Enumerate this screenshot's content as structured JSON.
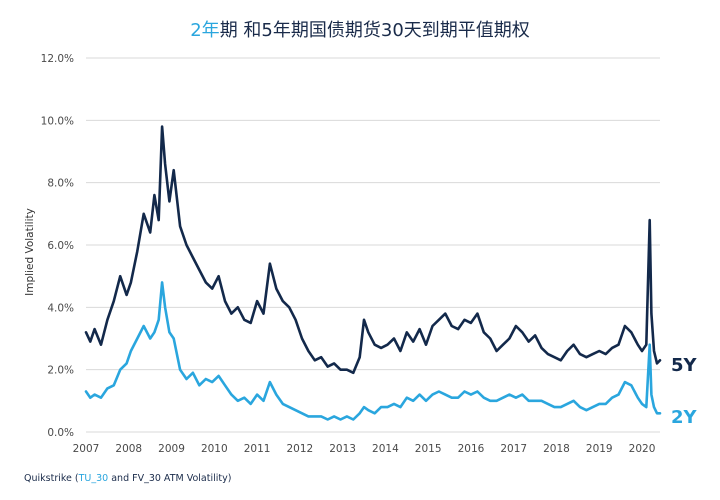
{
  "title": {
    "highlight": "2年",
    "rest": "期 和5年期国债期货30天到期平值期权"
  },
  "source": {
    "prefix": "Quikstrike (",
    "highlight": "TU_30",
    "suffix": " and FV_30 ATM Volatility)"
  },
  "colors": {
    "series_2y": "#2aa6de",
    "series_5y": "#13294b",
    "grid": "#d9d9d9",
    "text": "#4a4a4a"
  },
  "chart_data": {
    "type": "line",
    "ylabel": "Implied Volatility",
    "ylim": [
      0,
      12
    ],
    "xlim": [
      2007,
      2020.42
    ],
    "y_ticks": [
      0,
      2,
      4,
      6,
      8,
      10,
      12
    ],
    "y_tick_labels": [
      "0.0%",
      "2.0%",
      "4.0%",
      "6.0%",
      "8.0%",
      "10.0%",
      "12.0%"
    ],
    "x_ticks": [
      2007,
      2008,
      2009,
      2010,
      2011,
      2012,
      2013,
      2014,
      2015,
      2016,
      2017,
      2018,
      2019,
      2020
    ],
    "x_tick_labels": [
      "2007",
      "2008",
      "2009",
      "2010",
      "2011",
      "2012",
      "2013",
      "2014",
      "2015",
      "2016",
      "2017",
      "2018",
      "2019",
      "2020"
    ],
    "grid": true,
    "series": [
      {
        "name": "5Y",
        "x": [
          2007.0,
          2007.1,
          2007.2,
          2007.35,
          2007.5,
          2007.65,
          2007.8,
          2007.95,
          2008.05,
          2008.2,
          2008.35,
          2008.5,
          2008.6,
          2008.7,
          2008.78,
          2008.85,
          2008.95,
          2009.05,
          2009.2,
          2009.35,
          2009.5,
          2009.65,
          2009.8,
          2009.95,
          2010.1,
          2010.25,
          2010.4,
          2010.55,
          2010.7,
          2010.85,
          2011.0,
          2011.15,
          2011.3,
          2011.45,
          2011.6,
          2011.75,
          2011.9,
          2012.05,
          2012.2,
          2012.35,
          2012.5,
          2012.65,
          2012.8,
          2012.95,
          2013.1,
          2013.25,
          2013.4,
          2013.5,
          2013.6,
          2013.75,
          2013.9,
          2014.05,
          2014.2,
          2014.35,
          2014.5,
          2014.65,
          2014.8,
          2014.95,
          2015.1,
          2015.25,
          2015.4,
          2015.55,
          2015.7,
          2015.85,
          2016.0,
          2016.15,
          2016.3,
          2016.45,
          2016.6,
          2016.75,
          2016.9,
          2017.05,
          2017.2,
          2017.35,
          2017.5,
          2017.65,
          2017.8,
          2017.95,
          2018.1,
          2018.25,
          2018.4,
          2018.55,
          2018.7,
          2018.85,
          2019.0,
          2019.15,
          2019.3,
          2019.45,
          2019.6,
          2019.75,
          2019.9,
          2020.0,
          2020.1,
          2020.18,
          2020.22,
          2020.28,
          2020.35,
          2020.42
        ],
        "values": [
          3.2,
          2.9,
          3.3,
          2.8,
          3.6,
          4.2,
          5.0,
          4.4,
          4.8,
          5.8,
          7.0,
          6.4,
          7.6,
          6.8,
          9.8,
          8.6,
          7.4,
          8.4,
          6.6,
          6.0,
          5.6,
          5.2,
          4.8,
          4.6,
          5.0,
          4.2,
          3.8,
          4.0,
          3.6,
          3.5,
          4.2,
          3.8,
          5.4,
          4.6,
          4.2,
          4.0,
          3.6,
          3.0,
          2.6,
          2.3,
          2.4,
          2.1,
          2.2,
          2.0,
          2.0,
          1.9,
          2.4,
          3.6,
          3.2,
          2.8,
          2.7,
          2.8,
          3.0,
          2.6,
          3.2,
          2.9,
          3.3,
          2.8,
          3.4,
          3.6,
          3.8,
          3.4,
          3.3,
          3.6,
          3.5,
          3.8,
          3.2,
          3.0,
          2.6,
          2.8,
          3.0,
          3.4,
          3.2,
          2.9,
          3.1,
          2.7,
          2.5,
          2.4,
          2.3,
          2.6,
          2.8,
          2.5,
          2.4,
          2.5,
          2.6,
          2.5,
          2.7,
          2.8,
          3.4,
          3.2,
          2.8,
          2.6,
          2.8,
          6.8,
          3.8,
          2.6,
          2.2,
          2.3
        ]
      },
      {
        "name": "2Y",
        "x": [
          2007.0,
          2007.1,
          2007.2,
          2007.35,
          2007.5,
          2007.65,
          2007.8,
          2007.95,
          2008.05,
          2008.2,
          2008.35,
          2008.5,
          2008.6,
          2008.7,
          2008.78,
          2008.85,
          2008.95,
          2009.05,
          2009.2,
          2009.35,
          2009.5,
          2009.65,
          2009.8,
          2009.95,
          2010.1,
          2010.25,
          2010.4,
          2010.55,
          2010.7,
          2010.85,
          2011.0,
          2011.15,
          2011.3,
          2011.45,
          2011.6,
          2011.75,
          2011.9,
          2012.05,
          2012.2,
          2012.35,
          2012.5,
          2012.65,
          2012.8,
          2012.95,
          2013.1,
          2013.25,
          2013.4,
          2013.5,
          2013.6,
          2013.75,
          2013.9,
          2014.05,
          2014.2,
          2014.35,
          2014.5,
          2014.65,
          2014.8,
          2014.95,
          2015.1,
          2015.25,
          2015.4,
          2015.55,
          2015.7,
          2015.85,
          2016.0,
          2016.15,
          2016.3,
          2016.45,
          2016.6,
          2016.75,
          2016.9,
          2017.05,
          2017.2,
          2017.35,
          2017.5,
          2017.65,
          2017.8,
          2017.95,
          2018.1,
          2018.25,
          2018.4,
          2018.55,
          2018.7,
          2018.85,
          2019.0,
          2019.15,
          2019.3,
          2019.45,
          2019.6,
          2019.75,
          2019.9,
          2020.0,
          2020.1,
          2020.18,
          2020.22,
          2020.28,
          2020.35,
          2020.42
        ],
        "values": [
          1.3,
          1.1,
          1.2,
          1.1,
          1.4,
          1.5,
          2.0,
          2.2,
          2.6,
          3.0,
          3.4,
          3.0,
          3.2,
          3.6,
          4.8,
          4.0,
          3.2,
          3.0,
          2.0,
          1.7,
          1.9,
          1.5,
          1.7,
          1.6,
          1.8,
          1.5,
          1.2,
          1.0,
          1.1,
          0.9,
          1.2,
          1.0,
          1.6,
          1.2,
          0.9,
          0.8,
          0.7,
          0.6,
          0.5,
          0.5,
          0.5,
          0.4,
          0.5,
          0.4,
          0.5,
          0.4,
          0.6,
          0.8,
          0.7,
          0.6,
          0.8,
          0.8,
          0.9,
          0.8,
          1.1,
          1.0,
          1.2,
          1.0,
          1.2,
          1.3,
          1.2,
          1.1,
          1.1,
          1.3,
          1.2,
          1.3,
          1.1,
          1.0,
          1.0,
          1.1,
          1.2,
          1.1,
          1.2,
          1.0,
          1.0,
          1.0,
          0.9,
          0.8,
          0.8,
          0.9,
          1.0,
          0.8,
          0.7,
          0.8,
          0.9,
          0.9,
          1.1,
          1.2,
          1.6,
          1.5,
          1.1,
          0.9,
          0.8,
          2.8,
          1.2,
          0.8,
          0.6,
          0.6
        ]
      }
    ]
  }
}
